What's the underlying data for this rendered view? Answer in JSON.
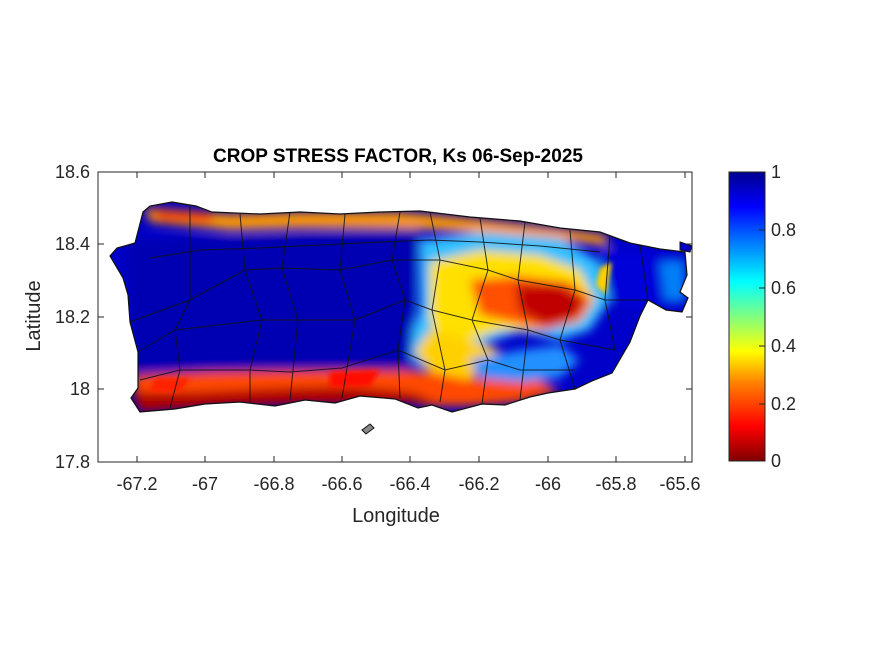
{
  "title": "CROP STRESS FACTOR, Ks  06-Sep-2025",
  "map": {
    "xlabel": "Longitude",
    "ylabel": "Latitude",
    "xlim": [
      -67.3,
      -65.59
    ],
    "ylim": [
      17.8,
      18.6
    ],
    "xticks": [
      "-67.2",
      "-67",
      "-66.8",
      "-66.6",
      "-66.4",
      "-66.2",
      "-66",
      "-65.8",
      "-65.6"
    ],
    "yticks": [
      "18.6",
      "18.4",
      "18.2",
      "18"
    ],
    "ytick_bottom": "17.8",
    "region": "Puerto Rico",
    "high_stress_areas": [
      "south coast",
      "northwest coast",
      "east-central interior"
    ]
  },
  "colorbar": {
    "ticks": [
      "1",
      "0.8",
      "0.6",
      "0.4",
      "0.2",
      "0"
    ],
    "colormap": "jet",
    "colors": [
      "#800000",
      "#ff0000",
      "#ff8000",
      "#ffff00",
      "#80ff80",
      "#00ffff",
      "#0080ff",
      "#0000ff",
      "#00008f"
    ]
  }
}
